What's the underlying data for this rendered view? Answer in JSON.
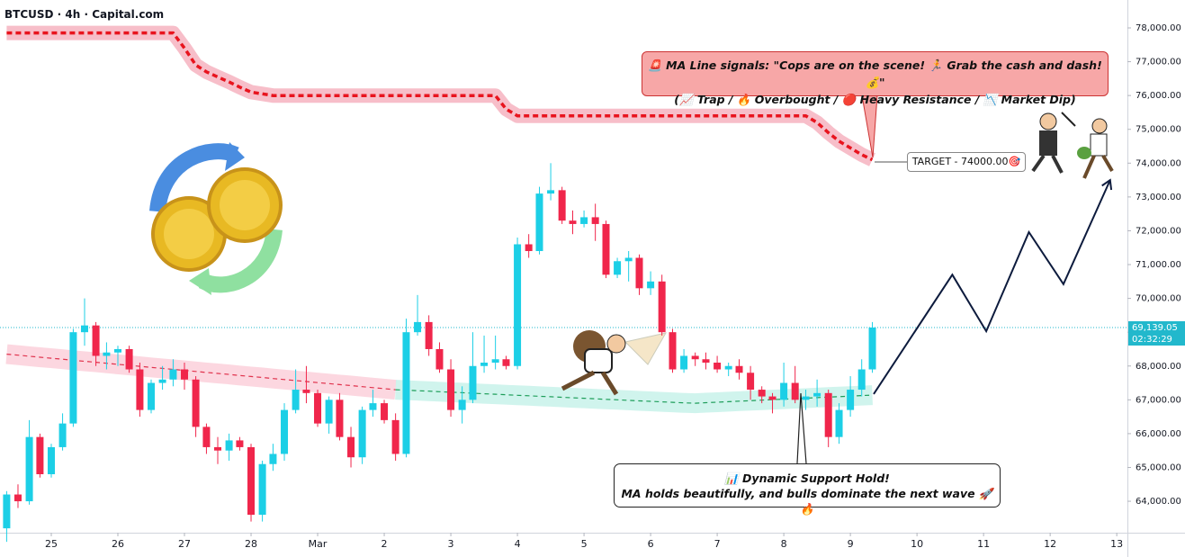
{
  "chart_data": {
    "type": "candlestick",
    "title": "BTCUSD · 4h · Capital.com",
    "xlim": [
      -0.77,
      16.16
    ],
    "ylim": [
      63070,
      78825
    ],
    "xticks": [
      {
        "value": 0,
        "label": "25"
      },
      {
        "value": 1,
        "label": "26"
      },
      {
        "value": 2,
        "label": "27"
      },
      {
        "value": 3,
        "label": "28"
      },
      {
        "value": 4,
        "label": "Mar"
      },
      {
        "value": 5,
        "label": "2"
      },
      {
        "value": 6,
        "label": "3"
      },
      {
        "value": 7,
        "label": "4"
      },
      {
        "value": 8,
        "label": "5"
      },
      {
        "value": 9,
        "label": "6"
      },
      {
        "value": 10,
        "label": "7"
      },
      {
        "value": 11,
        "label": "8"
      },
      {
        "value": 12,
        "label": "9"
      },
      {
        "value": 13,
        "label": "10"
      },
      {
        "value": 14,
        "label": "11"
      },
      {
        "value": 15,
        "label": "12"
      },
      {
        "value": 16,
        "label": "13"
      }
    ],
    "yticks": [
      {
        "value": 64000,
        "label": "64,000.00"
      },
      {
        "value": 65000,
        "label": "65,000.00"
      },
      {
        "value": 66000,
        "label": "66,000.00"
      },
      {
        "value": 67000,
        "label": "67,000.00"
      },
      {
        "value": 68000,
        "label": "68,000.00"
      },
      {
        "value": 69000,
        "label": "69,000.00"
      },
      {
        "value": 70000,
        "label": "70,000.00"
      },
      {
        "value": 71000,
        "label": "71,000.00"
      },
      {
        "value": 72000,
        "label": "72,000.00"
      },
      {
        "value": 73000,
        "label": "73,000.00"
      },
      {
        "value": 74000,
        "label": "74,000.00"
      },
      {
        "value": 75000,
        "label": "75,000.00"
      },
      {
        "value": 76000,
        "label": "76,000.00"
      },
      {
        "value": 77000,
        "label": "77,000.00"
      },
      {
        "value": 78000,
        "label": "78,000.00"
      }
    ],
    "x": [
      -0.67,
      -0.5,
      -0.33,
      -0.17,
      0,
      0.17,
      0.33,
      0.5,
      0.67,
      0.83,
      1,
      1.17,
      1.33,
      1.5,
      1.67,
      1.83,
      2,
      2.17,
      2.33,
      2.5,
      2.67,
      2.83,
      3,
      3.17,
      3.33,
      3.5,
      3.67,
      3.83,
      4,
      4.17,
      4.33,
      4.5,
      4.67,
      4.83,
      5,
      5.17,
      5.33,
      5.5,
      5.67,
      5.83,
      6,
      6.17,
      6.33,
      6.5,
      6.67,
      6.83,
      7,
      7.17,
      7.33,
      7.5,
      7.67,
      7.83,
      8,
      8.17,
      8.33,
      8.5,
      8.67,
      8.83,
      9,
      9.17,
      9.33,
      9.5,
      9.67,
      9.83,
      10,
      10.17,
      10.33,
      10.5,
      10.67,
      10.83,
      11,
      11.17,
      11.33,
      11.5,
      11.67,
      11.83,
      12,
      12.17,
      12.33
    ],
    "series": [
      {
        "up_color": "#1ccfe6",
        "down_color": "#f0264b",
        "open": [
          63200,
          64200,
          64000,
          65900,
          64800,
          65600,
          66300,
          69000,
          69200,
          68300,
          68400,
          68500,
          67900,
          66700,
          67500,
          67600,
          67900,
          67600,
          66200,
          65600,
          65500,
          65800,
          65600,
          63600,
          65100,
          65400,
          66700,
          67300,
          67200,
          66300,
          67000,
          65900,
          65300,
          66700,
          66900,
          66400,
          65400,
          69000,
          69300,
          68500,
          67900,
          66700,
          67000,
          68000,
          68100,
          68200,
          68000,
          71600,
          71400,
          73100,
          73200,
          72300,
          72200,
          72400,
          72200,
          70700,
          71100,
          71200,
          70300,
          70500,
          69000,
          67900,
          68300,
          68200,
          68100,
          67900,
          68000,
          67800,
          67300,
          67100,
          67000,
          67500,
          67000,
          67100,
          67200,
          65900,
          66700,
          67300,
          67900
        ],
        "high": [
          64300,
          64500,
          66400,
          66000,
          65700,
          66600,
          69100,
          70000,
          69300,
          68700,
          68600,
          68600,
          68100,
          67600,
          68000,
          68200,
          68100,
          67700,
          66300,
          65900,
          66000,
          65900,
          65700,
          65200,
          65700,
          66900,
          67900,
          68000,
          67300,
          67100,
          67200,
          66200,
          66800,
          67300,
          67000,
          66600,
          69400,
          70100,
          69500,
          68700,
          68200,
          67400,
          69000,
          68900,
          68900,
          68300,
          71800,
          71900,
          73300,
          74000,
          73300,
          72600,
          72600,
          72800,
          72300,
          71200,
          71400,
          71300,
          70800,
          70700,
          69100,
          68500,
          68400,
          68400,
          68300,
          68100,
          68200,
          68000,
          67400,
          67200,
          68100,
          68000,
          67300,
          67600,
          67300,
          66900,
          67700,
          68200,
          69300
        ],
        "low": [
          62800,
          63800,
          63900,
          64700,
          64700,
          65500,
          66200,
          68600,
          68000,
          67900,
          68000,
          67800,
          66500,
          66600,
          67300,
          67400,
          67300,
          65900,
          65400,
          65100,
          65200,
          65500,
          63400,
          63400,
          64900,
          65200,
          66600,
          66900,
          66200,
          66000,
          65800,
          65000,
          65100,
          66500,
          66300,
          65200,
          65300,
          68900,
          68300,
          67800,
          66500,
          66300,
          66900,
          67800,
          67900,
          67900,
          67900,
          71200,
          71300,
          72900,
          72200,
          71900,
          72100,
          71700,
          70600,
          70600,
          70500,
          70100,
          70100,
          68900,
          67800,
          67800,
          68000,
          67900,
          67800,
          67700,
          67600,
          67000,
          66900,
          66600,
          66800,
          66900,
          66700,
          66800,
          65600,
          65700,
          66500,
          67100,
          67800
        ],
        "close": [
          64200,
          64000,
          65900,
          64800,
          65600,
          66300,
          69000,
          69200,
          68300,
          68400,
          68500,
          67900,
          66700,
          67500,
          67600,
          67900,
          67600,
          66200,
          65600,
          65500,
          65800,
          65600,
          63600,
          65100,
          65400,
          66700,
          67300,
          67200,
          66300,
          67000,
          65900,
          65300,
          66700,
          66900,
          66400,
          65400,
          69000,
          69300,
          68500,
          67900,
          66700,
          67000,
          68000,
          68100,
          68200,
          68000,
          71600,
          71400,
          73100,
          73200,
          72300,
          72200,
          72400,
          72200,
          70700,
          71100,
          71200,
          70300,
          70500,
          69000,
          67900,
          68300,
          68200,
          68100,
          67900,
          68000,
          67800,
          67300,
          67100,
          67000,
          67500,
          67000,
          67100,
          67200,
          65900,
          66700,
          67300,
          67900,
          69139.05
        ]
      }
    ],
    "lines": [
      {
        "color": "#e8141e",
        "band_color": "#f6b3c0",
        "style": "heavy",
        "values": [
          77850,
          77850,
          77850,
          77850,
          77850,
          77850,
          77850,
          77850,
          77850,
          77850,
          77850,
          77850,
          77850,
          77850,
          77850,
          77850,
          77400,
          76900,
          76700,
          76550,
          76400,
          76250,
          76100,
          76050,
          76000,
          76000,
          76000,
          76000,
          76000,
          76000,
          76000,
          76000,
          76000,
          76000,
          76000,
          76000,
          76000,
          76000,
          76000,
          76000,
          76000,
          76000,
          76000,
          76000,
          76000,
          75600,
          75400,
          75400,
          75400,
          75400,
          75400,
          75400,
          75400,
          75400,
          75400,
          75400,
          75400,
          75400,
          75400,
          75400,
          75400,
          75400,
          75400,
          75400,
          75400,
          75400,
          75400,
          75400,
          75400,
          75400,
          75400,
          75400,
          75400,
          75200,
          74900,
          74650,
          74450,
          74250,
          74100
        ]
      },
      {
        "color": "#e0334d",
        "band_color": "#fbd0da",
        "style": "light",
        "values": [
          68350,
          68320,
          68290,
          68260,
          68230,
          68200,
          68170,
          68140,
          68110,
          68080,
          68050,
          68020,
          67990,
          67960,
          67930,
          67900,
          67870,
          67840,
          67810,
          67780,
          67750,
          67720,
          67690,
          67660,
          67630,
          67600,
          67570,
          67540,
          67510,
          67480,
          67450,
          67420,
          67390,
          67360,
          67330,
          67300,
          null,
          null,
          null,
          null,
          null,
          null,
          null,
          null,
          null,
          null,
          null,
          null,
          null,
          null,
          null,
          null,
          null,
          null,
          null,
          null,
          null,
          null,
          null,
          null,
          null,
          null,
          null,
          null,
          null,
          null,
          null,
          null,
          null,
          null,
          null,
          null,
          null,
          null,
          null,
          null,
          null,
          null,
          null
        ]
      },
      {
        "color": "#1e9e5a",
        "band_color": "#c8f2ea",
        "style": "light",
        "values": [
          null,
          null,
          null,
          null,
          null,
          null,
          null,
          null,
          null,
          null,
          null,
          null,
          null,
          null,
          null,
          null,
          null,
          null,
          null,
          null,
          null,
          null,
          null,
          null,
          null,
          null,
          null,
          null,
          null,
          null,
          null,
          null,
          null,
          null,
          null,
          67300,
          67285,
          67270,
          67255,
          67240,
          67225,
          67210,
          67195,
          67180,
          67165,
          67150,
          67135,
          67120,
          67105,
          67090,
          67075,
          67060,
          67045,
          67030,
          67015,
          67000,
          66985,
          66970,
          66955,
          66940,
          66925,
          66910,
          66900,
          66915,
          66930,
          66945,
          66960,
          66975,
          66990,
          67005,
          67020,
          67035,
          67050,
          67065,
          67080,
          67095,
          67110,
          67125,
          67140
        ]
      }
    ],
    "projection": {
      "color": "#0d1b3d",
      "x": [
        12.35,
        13.53,
        14.04,
        14.68,
        15.2,
        15.9
      ],
      "values": [
        67170,
        70700,
        69030,
        71960,
        70420,
        73500
      ]
    },
    "last_price": {
      "value": 69139.05,
      "label": "69,139.05"
    },
    "countdown": "02:32:29",
    "callout": [
      "🚨 MA Line signals: \"Cops are on the scene! 🏃 Grab the cash and dash! 💰\"",
      "(📈 Trap / 🔥 Overbought / 🔴 Heavy Resistance / 📉 Market Dip)"
    ],
    "target": "TARGET - 74000.00🎯",
    "support_note": [
      "📊 Dynamic Support Hold!",
      "MA holds beautifully, and bulls dominate the next wave 🚀🔥"
    ]
  }
}
